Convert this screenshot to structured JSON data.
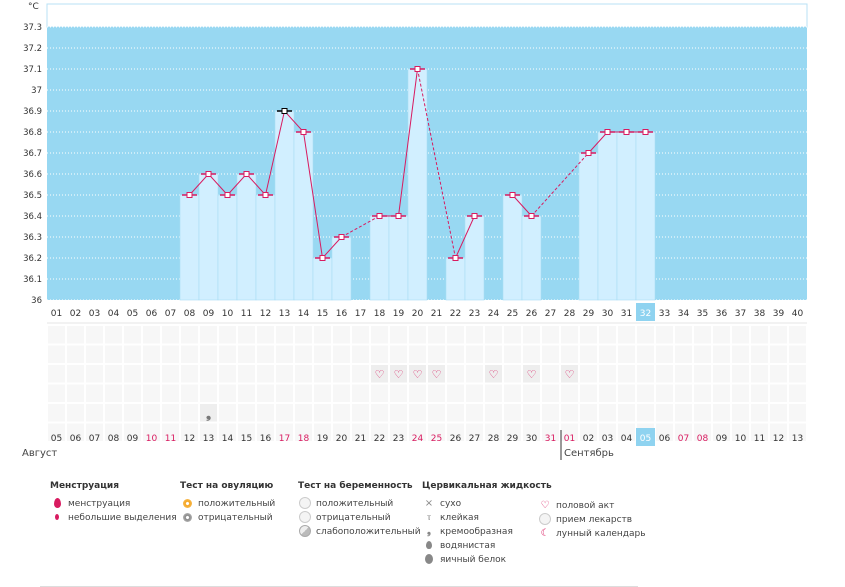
{
  "colors": {
    "plot_bg": "#98d8f2",
    "bar_fill": "#d1efff",
    "bar_edge": "#a9dcf3",
    "line": "#d81b60",
    "weekend_text": "#d81b60",
    "highlight": "#8fd3f0",
    "grid_cell": "#f7f7f7"
  },
  "chart_data": {
    "type": "bar",
    "ylabel": "°С",
    "ylim": [
      36,
      37.3
    ],
    "yticks": [
      "37.3",
      "37.2",
      "37.1",
      "37",
      "36.9",
      "36.8",
      "36.7",
      "36.6",
      "36.5",
      "36.4",
      "36.3",
      "36.2",
      "36.1",
      "36"
    ],
    "cycle_days": [
      "01",
      "02",
      "03",
      "04",
      "05",
      "06",
      "07",
      "08",
      "09",
      "10",
      "11",
      "12",
      "13",
      "14",
      "15",
      "16",
      "17",
      "18",
      "19",
      "20",
      "21",
      "22",
      "23",
      "24",
      "25",
      "26",
      "27",
      "28",
      "29",
      "30",
      "31",
      "32",
      "33",
      "34",
      "35",
      "36",
      "37",
      "38",
      "39",
      "40"
    ],
    "highlight_cycle_day": "32",
    "temperatures": [
      null,
      null,
      null,
      null,
      null,
      null,
      null,
      36.5,
      36.6,
      36.5,
      36.6,
      36.5,
      36.9,
      36.8,
      36.2,
      36.3,
      null,
      36.4,
      36.4,
      37.1,
      null,
      36.2,
      36.4,
      null,
      36.5,
      36.4,
      null,
      null,
      36.7,
      36.8,
      36.8,
      36.8,
      null,
      null,
      null,
      null,
      null,
      null,
      null,
      null
    ],
    "dashed_gaps": [
      [
        16,
        18
      ],
      [
        20,
        22
      ],
      [
        26,
        29
      ]
    ],
    "black_marker_day": 13,
    "dates": [
      "05",
      "06",
      "07",
      "08",
      "09",
      "10",
      "11",
      "12",
      "13",
      "14",
      "15",
      "16",
      "17",
      "18",
      "19",
      "20",
      "21",
      "22",
      "23",
      "24",
      "25",
      "26",
      "27",
      "28",
      "29",
      "30",
      "31",
      "01",
      "02",
      "03",
      "04",
      "05",
      "06",
      "07",
      "08",
      "09",
      "10",
      "11",
      "12",
      "13"
    ],
    "date_weekend": [
      false,
      false,
      false,
      false,
      false,
      true,
      true,
      false,
      false,
      false,
      false,
      false,
      true,
      true,
      false,
      false,
      false,
      false,
      false,
      true,
      true,
      false,
      false,
      false,
      false,
      false,
      true,
      true,
      false,
      false,
      false,
      false,
      false,
      true,
      true,
      false,
      false,
      false,
      false,
      false
    ],
    "highlight_date_index": 31,
    "months": [
      {
        "label": "Август",
        "start_index": 0
      },
      {
        "label": "Сентябрь",
        "start_index": 27
      }
    ],
    "intercourse_days": [
      18,
      19,
      20,
      21,
      24,
      26,
      28
    ],
    "creamy_day": 9
  },
  "legend": {
    "menstruation": {
      "title": "Менструация",
      "items": [
        "менструация",
        "небольшие выделения"
      ]
    },
    "ovulation": {
      "title": "Тест на овуляцию",
      "items": [
        "положительный",
        "отрицательный"
      ]
    },
    "pregnancy": {
      "title": "Тест на беременность",
      "items": [
        "положительный",
        "отрицательный",
        "слабоположительный"
      ]
    },
    "cervical": {
      "title": "Цервикальная жидкость",
      "items": [
        "сухо",
        "клейкая",
        "кремообразная",
        "водянистая",
        "яичный белок"
      ]
    },
    "other": {
      "items": [
        "половой акт",
        "прием лекарств",
        "лунный календарь"
      ]
    }
  }
}
